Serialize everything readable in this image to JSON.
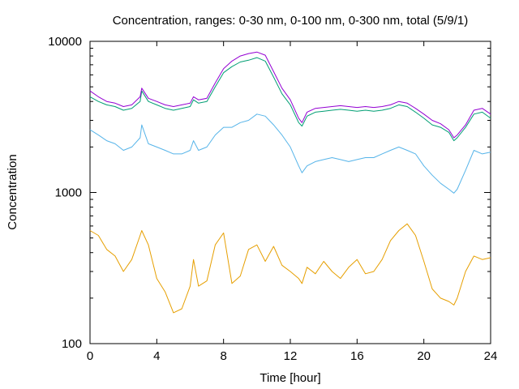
{
  "chart_data": {
    "type": "line",
    "title": "Concentration, ranges: 0-30 nm, 0-100 nm, 0-300 nm, total (5/9/1)",
    "xlabel": "Time [hour]",
    "ylabel": "Concentration",
    "xlim": [
      0,
      24
    ],
    "ylim": [
      100,
      10000
    ],
    "yscale": "log",
    "grid": false,
    "legend": "none",
    "x_ticks": [
      0,
      4,
      8,
      12,
      16,
      20,
      24
    ],
    "y_ticks": [
      100,
      1000,
      10000
    ],
    "x": [
      0,
      0.5,
      1,
      1.5,
      2,
      2.5,
      3,
      3.1,
      3.5,
      4,
      4.5,
      5,
      5.5,
      6,
      6.2,
      6.5,
      7,
      7.5,
      8,
      8.5,
      9,
      9.5,
      10,
      10.5,
      11,
      11.5,
      12,
      12.5,
      12.7,
      13,
      13.5,
      14,
      14.5,
      15,
      15.5,
      16,
      16.5,
      17,
      17.5,
      18,
      18.5,
      19,
      19.5,
      20,
      20.5,
      21,
      21.5,
      21.8,
      22,
      22.5,
      23,
      23.5,
      24
    ],
    "series": [
      {
        "color": "#e69f00",
        "values": [
          560,
          520,
          420,
          380,
          300,
          360,
          520,
          560,
          450,
          270,
          220,
          160,
          170,
          240,
          360,
          240,
          260,
          450,
          540,
          250,
          280,
          420,
          450,
          350,
          440,
          330,
          300,
          270,
          250,
          320,
          290,
          350,
          300,
          270,
          320,
          360,
          290,
          300,
          360,
          480,
          560,
          620,
          520,
          350,
          230,
          200,
          190,
          180,
          200,
          300,
          380,
          360,
          370
        ]
      },
      {
        "color": "#56b4e9",
        "values": [
          2600,
          2400,
          2200,
          2100,
          1900,
          2000,
          2300,
          2800,
          2100,
          2000,
          1900,
          1800,
          1800,
          1900,
          2200,
          1900,
          2000,
          2400,
          2700,
          2700,
          2900,
          3000,
          3300,
          3200,
          2800,
          2400,
          2000,
          1500,
          1350,
          1500,
          1600,
          1650,
          1700,
          1650,
          1600,
          1650,
          1700,
          1700,
          1800,
          1900,
          2000,
          1900,
          1800,
          1500,
          1300,
          1150,
          1050,
          990,
          1050,
          1400,
          1900,
          1800,
          1850
        ]
      },
      {
        "color": "#009e73",
        "values": [
          4300,
          4000,
          3800,
          3700,
          3500,
          3600,
          4000,
          4700,
          4000,
          3800,
          3600,
          3500,
          3600,
          3700,
          4100,
          3900,
          4000,
          5000,
          6200,
          6800,
          7300,
          7500,
          7800,
          7400,
          5800,
          4500,
          3800,
          2900,
          2750,
          3200,
          3400,
          3450,
          3500,
          3550,
          3500,
          3450,
          3500,
          3450,
          3500,
          3600,
          3800,
          3700,
          3400,
          3100,
          2800,
          2700,
          2500,
          2200,
          2300,
          2700,
          3300,
          3400,
          3100
        ]
      },
      {
        "color": "#9400d3",
        "values": [
          4700,
          4300,
          4000,
          3900,
          3700,
          3800,
          4300,
          4900,
          4200,
          4000,
          3800,
          3700,
          3800,
          3900,
          4300,
          4100,
          4200,
          5300,
          6600,
          7400,
          8000,
          8300,
          8500,
          8100,
          6300,
          4900,
          4100,
          3100,
          2900,
          3400,
          3600,
          3650,
          3700,
          3750,
          3700,
          3650,
          3700,
          3650,
          3700,
          3800,
          4000,
          3900,
          3600,
          3300,
          3000,
          2850,
          2600,
          2300,
          2400,
          2800,
          3500,
          3600,
          3300
        ]
      }
    ]
  }
}
